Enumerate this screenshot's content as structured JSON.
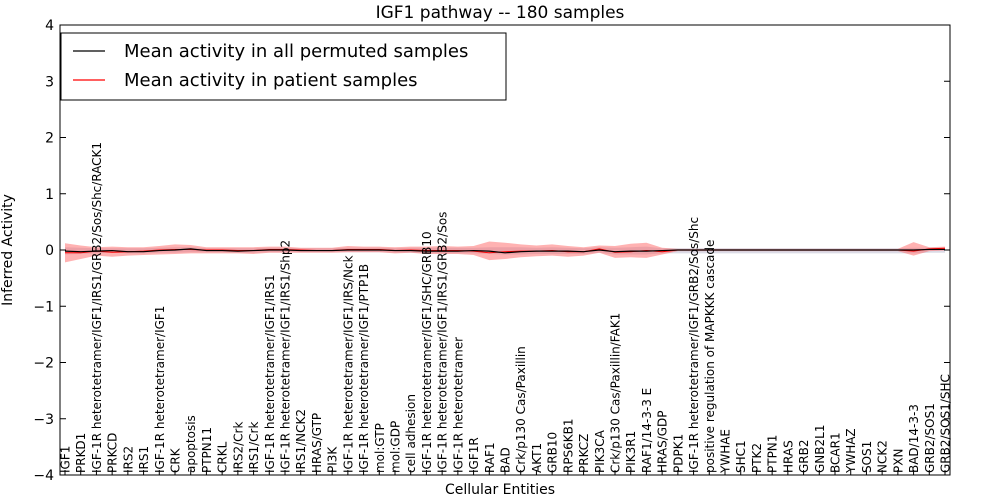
{
  "chart_data": {
    "type": "line",
    "title": "IGF1 pathway -- 180 samples",
    "xlabel": "Cellular Entities",
    "ylabel": "Inferred Activity",
    "ylim": [
      -4,
      4
    ],
    "yticks": [
      "−4",
      "−3",
      "−2",
      "−1",
      "0",
      "1",
      "2",
      "3",
      "4"
    ],
    "grid": false,
    "legend_position": "top-left",
    "legend": [
      {
        "label": "Mean activity in all permuted samples",
        "color": "#000000"
      },
      {
        "label": "Mean activity in patient samples",
        "color": "#ff0000"
      }
    ],
    "colors": {
      "permuted_line": "#000000",
      "patient_line": "#ff0000",
      "patient_band": "#ff6666",
      "permuted_band": "#b0b0c8"
    },
    "categories": [
      "IGF1",
      "PRKD1",
      "IGF-1R heterotetramer/IGF1/IRS1/GRB2/Sos/Shc/RACK1",
      "PRKCD",
      "IRS2",
      "IRS1",
      "IGF-1R heterotetramer/IGF1",
      "CRK",
      "apoptosis",
      "PTPN11",
      "CRKL",
      "IRS2/Crk",
      "IRS1/Crk",
      "IGF-1R heterotetramer/IGF1/IRS1",
      "IGF-1R heterotetramer/IGF1/IRS1/Shp2",
      "IRS1/NCK2",
      "HRAS/GTP",
      "PI3K",
      "IGF-1R heterotetramer/IGF1/IRS/Nck",
      "IGF-1R heterotetramer/IGF1/PTP1B",
      "mol:GTP",
      "mol:GDP",
      "cell adhesion",
      "IGF-1R heterotetramer/IGF1/SHC/GRB10",
      "IGF-1R heterotetramer/IGF1/IRS1/GRB2/Sos",
      "IGF-1R heterotetramer",
      "IGF1R",
      "RAF1",
      "BAD",
      "Crk/p130 Cas/Paxillin",
      "AKT1",
      "GRB10",
      "RPS6KB1",
      "PRKCZ",
      "PIK3CA",
      "Crk/p130 Cas/Paxillin/FAK1",
      "PIK3R1",
      "RAF1/14-3-3 E",
      "HRAS/GDP",
      "PDPK1",
      "IGF-1R heterotetramer/IGF1/GRB2/Sos/Shc",
      "positive regulation of MAPKKK cascade",
      "YWHAE",
      "SHC1",
      "PTK2",
      "PTPN1",
      "HRAS",
      "GRB2",
      "GNB2L1",
      "BCAR1",
      "YWHAZ",
      "SOS1",
      "NCK2",
      "PXN",
      "BAD/14-3-3",
      "GRB2/SOS1",
      "GRB2/SOS1/SHC"
    ],
    "series": [
      {
        "name": "Mean activity in all permuted samples",
        "values": [
          -0.02,
          -0.03,
          -0.02,
          -0.01,
          -0.03,
          -0.03,
          -0.01,
          0.0,
          0.02,
          -0.01,
          -0.01,
          -0.02,
          -0.01,
          0.0,
          0.0,
          -0.01,
          -0.01,
          -0.01,
          0.0,
          0.0,
          0.0,
          -0.01,
          -0.01,
          -0.02,
          -0.02,
          -0.02,
          -0.01,
          -0.02,
          -0.05,
          -0.03,
          -0.02,
          -0.02,
          -0.02,
          -0.03,
          0.0,
          -0.03,
          -0.02,
          -0.02,
          -0.01,
          0.0,
          0.0,
          0.0,
          0.0,
          0.0,
          0.0,
          0.0,
          0.0,
          0.0,
          0.0,
          0.0,
          0.0,
          0.0,
          0.0,
          0.0,
          0.0,
          0.01,
          0.01
        ]
      },
      {
        "name": "Mean activity in patient samples",
        "values": [
          -0.05,
          -0.05,
          -0.02,
          -0.04,
          -0.03,
          -0.02,
          0.0,
          0.01,
          0.01,
          0.0,
          0.0,
          -0.01,
          -0.01,
          0.01,
          0.01,
          0.0,
          -0.01,
          -0.01,
          0.01,
          0.01,
          0.01,
          -0.01,
          0.0,
          -0.01,
          -0.01,
          -0.01,
          -0.02,
          -0.05,
          -0.03,
          -0.02,
          -0.02,
          -0.01,
          -0.03,
          -0.03,
          0.02,
          -0.04,
          -0.03,
          -0.01,
          -0.03,
          0.0,
          0.0,
          0.0,
          0.0,
          0.0,
          0.0,
          0.0,
          0.0,
          0.0,
          0.0,
          0.0,
          0.0,
          0.0,
          0.0,
          0.0,
          -0.02,
          0.02,
          0.03
        ],
        "band_upper": [
          0.12,
          0.08,
          0.05,
          0.06,
          0.05,
          0.05,
          0.07,
          0.1,
          0.09,
          0.05,
          0.05,
          0.05,
          0.05,
          0.06,
          0.06,
          0.04,
          0.04,
          0.04,
          0.07,
          0.06,
          0.06,
          0.05,
          0.06,
          0.06,
          0.07,
          0.06,
          0.07,
          0.15,
          0.13,
          0.1,
          0.08,
          0.1,
          0.07,
          0.05,
          0.08,
          0.07,
          0.11,
          0.13,
          0.04,
          0.02,
          0.02,
          0.02,
          0.02,
          0.02,
          0.02,
          0.02,
          0.02,
          0.02,
          0.02,
          0.02,
          0.02,
          0.02,
          0.02,
          0.02,
          0.14,
          0.05,
          0.06
        ],
        "band_lower": [
          -0.22,
          -0.16,
          -0.1,
          -0.12,
          -0.1,
          -0.09,
          -0.08,
          -0.07,
          -0.06,
          -0.06,
          -0.06,
          -0.06,
          -0.07,
          -0.05,
          -0.05,
          -0.05,
          -0.05,
          -0.05,
          -0.04,
          -0.04,
          -0.04,
          -0.06,
          -0.05,
          -0.07,
          -0.07,
          -0.07,
          -0.09,
          -0.18,
          -0.16,
          -0.13,
          -0.11,
          -0.1,
          -0.12,
          -0.1,
          -0.05,
          -0.14,
          -0.13,
          -0.14,
          -0.08,
          -0.02,
          -0.02,
          -0.02,
          -0.02,
          -0.02,
          -0.02,
          -0.02,
          -0.02,
          -0.02,
          -0.02,
          -0.02,
          -0.02,
          -0.02,
          -0.02,
          -0.02,
          -0.1,
          -0.02,
          -0.01
        ]
      }
    ],
    "permuted_band_upper": [
      0.05,
      0.04,
      0.03,
      0.03,
      0.03,
      0.03,
      0.04,
      0.05,
      0.05,
      0.03,
      0.03,
      0.03,
      0.03,
      0.04,
      0.04,
      0.03,
      0.03,
      0.03,
      0.04,
      0.04,
      0.04,
      0.03,
      0.04,
      0.04,
      0.04,
      0.04,
      0.04,
      0.05,
      0.05,
      0.05,
      0.04,
      0.05,
      0.04,
      0.03,
      0.05,
      0.04,
      0.05,
      0.06,
      0.03,
      0.03,
      0.03,
      0.03,
      0.03,
      0.03,
      0.03,
      0.03,
      0.03,
      0.03,
      0.03,
      0.03,
      0.03,
      0.03,
      0.03,
      0.03,
      0.04,
      0.04,
      0.04
    ],
    "permuted_band_lower": [
      -0.08,
      -0.07,
      -0.06,
      -0.05,
      -0.06,
      -0.06,
      -0.05,
      -0.05,
      -0.04,
      -0.04,
      -0.04,
      -0.05,
      -0.05,
      -0.04,
      -0.04,
      -0.04,
      -0.04,
      -0.04,
      -0.04,
      -0.04,
      -0.04,
      -0.05,
      -0.05,
      -0.06,
      -0.06,
      -0.06,
      -0.06,
      -0.07,
      -0.08,
      -0.08,
      -0.07,
      -0.07,
      -0.07,
      -0.07,
      -0.05,
      -0.08,
      -0.08,
      -0.08,
      -0.06,
      -0.06,
      -0.06,
      -0.06,
      -0.06,
      -0.06,
      -0.06,
      -0.06,
      -0.06,
      -0.06,
      -0.06,
      -0.06,
      -0.06,
      -0.06,
      -0.06,
      -0.06,
      -0.06,
      -0.05,
      -0.05
    ]
  }
}
